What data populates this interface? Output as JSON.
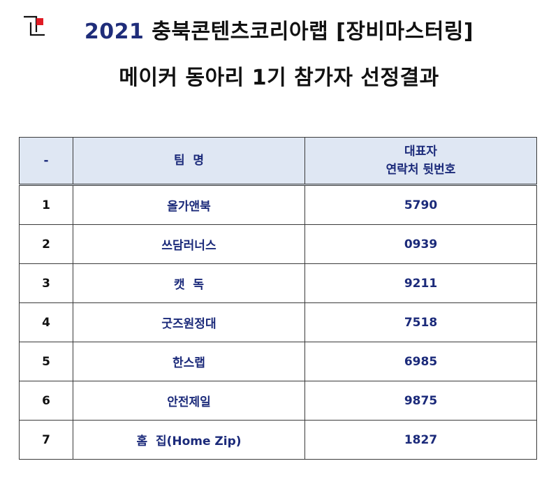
{
  "header": {
    "logo": "corner-bracket-logo",
    "title_year": "2021",
    "title_line1_rest": "충북콘텐츠코리아랩 [장비마스터링]",
    "title_line2": "메이커 동아리 1기 참가자 선정결과"
  },
  "table": {
    "columns": {
      "no": "-",
      "team": "팀  명",
      "contact_line1": "대표자",
      "contact_line2": "연락처 뒷번호"
    },
    "rows": [
      {
        "no": "1",
        "team": "올가앤북",
        "contact": "5790"
      },
      {
        "no": "2",
        "team": "쓰담러너스",
        "contact": "0939"
      },
      {
        "no": "3",
        "team": "캣  독",
        "contact": "9211"
      },
      {
        "no": "4",
        "team": "굿즈원정대",
        "contact": "7518"
      },
      {
        "no": "5",
        "team": "한스랩",
        "contact": "6985"
      },
      {
        "no": "6",
        "team": "안전제일",
        "contact": "9875"
      },
      {
        "no": "7",
        "team": "홈  집(Home Zip)",
        "contact": "1827"
      }
    ]
  },
  "colors": {
    "text_blue": "#1b2a7a",
    "header_bg": "#dfe7f3",
    "logo_red": "#e01b24"
  }
}
